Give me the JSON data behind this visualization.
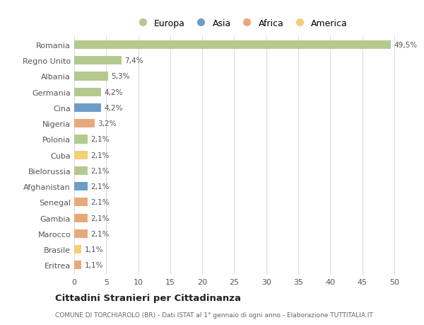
{
  "countries": [
    "Romania",
    "Regno Unito",
    "Albania",
    "Germania",
    "Cina",
    "Nigeria",
    "Polonia",
    "Cuba",
    "Bielorussia",
    "Afghanistan",
    "Senegal",
    "Gambia",
    "Marocco",
    "Brasile",
    "Eritrea"
  ],
  "values": [
    49.5,
    7.4,
    5.3,
    4.2,
    4.2,
    3.2,
    2.1,
    2.1,
    2.1,
    2.1,
    2.1,
    2.1,
    2.1,
    1.1,
    1.1
  ],
  "labels": [
    "49,5%",
    "7,4%",
    "5,3%",
    "4,2%",
    "4,2%",
    "3,2%",
    "2,1%",
    "2,1%",
    "2,1%",
    "2,1%",
    "2,1%",
    "2,1%",
    "2,1%",
    "1,1%",
    "1,1%"
  ],
  "colors": [
    "#b5c98e",
    "#b5c98e",
    "#b5c98e",
    "#b5c98e",
    "#6b9ec8",
    "#e8a97a",
    "#b5c98e",
    "#f0d07a",
    "#b5c98e",
    "#6b9ec8",
    "#e8a97a",
    "#e8a97a",
    "#e8a97a",
    "#f0d07a",
    "#e8a97a"
  ],
  "legend_labels": [
    "Europa",
    "Asia",
    "Africa",
    "America"
  ],
  "legend_colors": [
    "#b5c98e",
    "#6b9ec8",
    "#e8a97a",
    "#f0d07a"
  ],
  "title": "Cittadini Stranieri per Cittadinanza",
  "subtitle": "COMUNE DI TORCHIAROLO (BR) - Dati ISTAT al 1° gennaio di ogni anno - Elaborazione TUTTITALIA.IT",
  "xlim": [
    0,
    52
  ],
  "xticks": [
    0,
    5,
    10,
    15,
    20,
    25,
    30,
    35,
    40,
    45,
    50
  ],
  "background_color": "#ffffff",
  "grid_color": "#dddddd"
}
